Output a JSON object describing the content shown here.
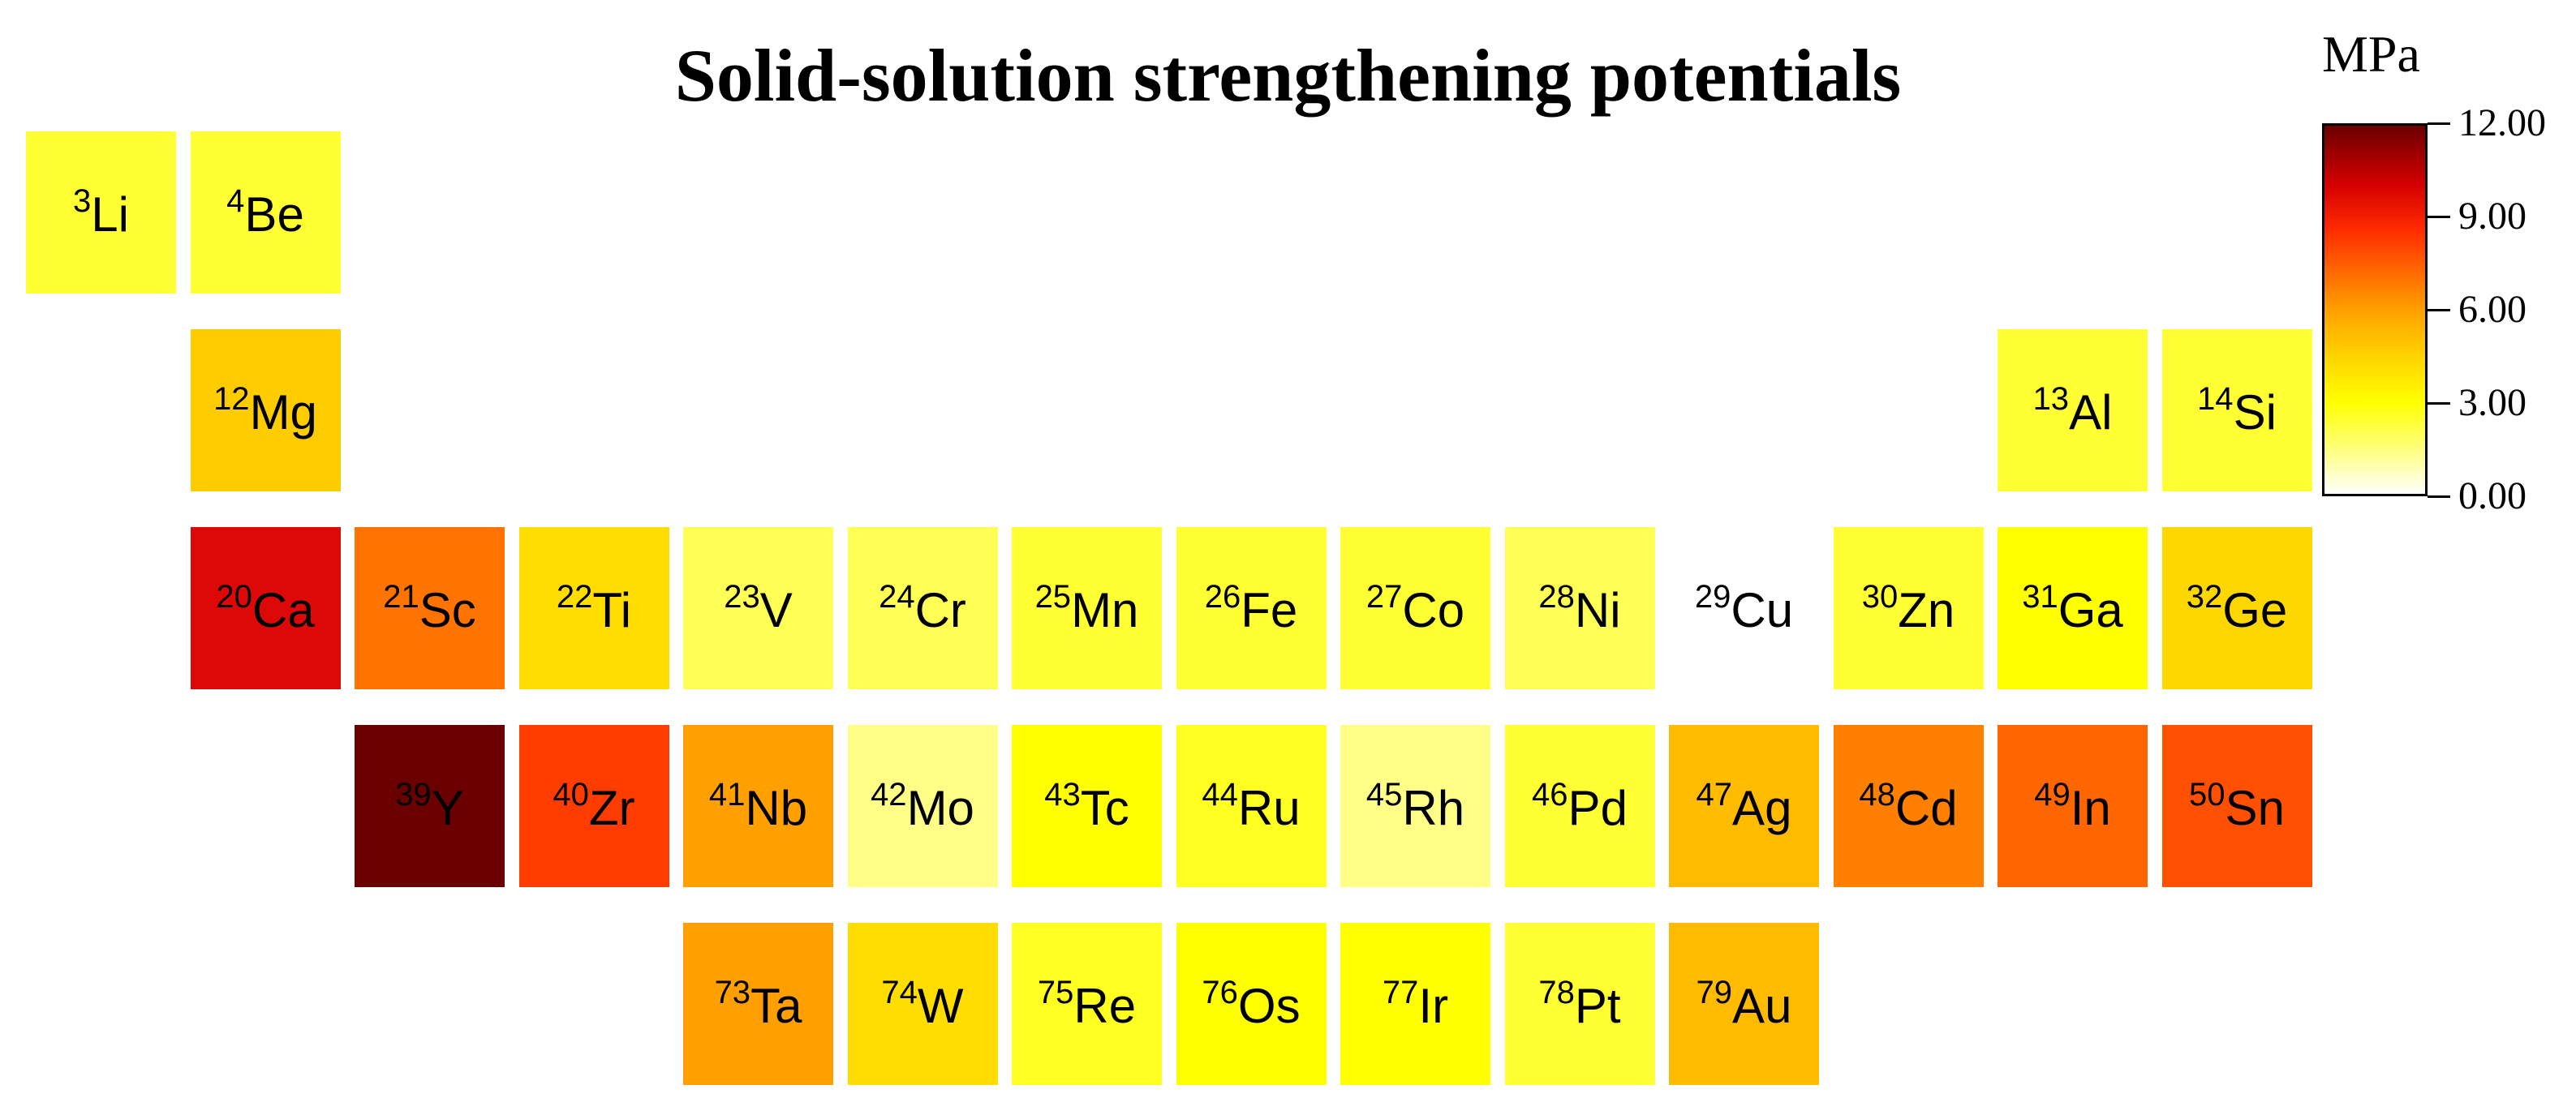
{
  "chart_data": {
    "type": "heatmap",
    "title": "Solid-solution strengthening potentials",
    "colorbar": {
      "unit": "MPa",
      "range": [
        0,
        12
      ],
      "ticks": [
        "0.00",
        "3.00",
        "6.00",
        "9.00",
        "12.00"
      ],
      "colors": [
        "#ffffff",
        "#ffff80",
        "#ffff00",
        "#ffd400",
        "#ffa000",
        "#ff6a00",
        "#ff2a00",
        "#d40000",
        "#a00000",
        "#6a0000"
      ]
    },
    "elements": [
      {
        "z": "3",
        "symbol": "Li",
        "row": 0,
        "col": 0,
        "value": 2.4,
        "color": "#ffff33"
      },
      {
        "z": "4",
        "symbol": "Be",
        "row": 0,
        "col": 1,
        "value": 2.3,
        "color": "#ffff33"
      },
      {
        "z": "12",
        "symbol": "Mg",
        "row": 1,
        "col": 1,
        "value": 4.6,
        "color": "#ffcc00"
      },
      {
        "z": "13",
        "symbol": "Al",
        "row": 1,
        "col": 12,
        "value": 2.5,
        "color": "#ffff33"
      },
      {
        "z": "14",
        "symbol": "Si",
        "row": 1,
        "col": 13,
        "value": 2.4,
        "color": "#ffff33"
      },
      {
        "z": "20",
        "symbol": "Ca",
        "row": 2,
        "col": 1,
        "value": 9.8,
        "color": "#dd0808"
      },
      {
        "z": "21",
        "symbol": "Sc",
        "row": 2,
        "col": 2,
        "value": 7.0,
        "color": "#ff7300"
      },
      {
        "z": "22",
        "symbol": "Ti",
        "row": 2,
        "col": 3,
        "value": 4.1,
        "color": "#ffdd00"
      },
      {
        "z": "23",
        "symbol": "V",
        "row": 2,
        "col": 4,
        "value": 1.8,
        "color": "#ffff55"
      },
      {
        "z": "24",
        "symbol": "Cr",
        "row": 2,
        "col": 5,
        "value": 1.8,
        "color": "#ffff55"
      },
      {
        "z": "25",
        "symbol": "Mn",
        "row": 2,
        "col": 6,
        "value": 2.4,
        "color": "#ffff33"
      },
      {
        "z": "26",
        "symbol": "Fe",
        "row": 2,
        "col": 7,
        "value": 2.4,
        "color": "#ffff33"
      },
      {
        "z": "27",
        "symbol": "Co",
        "row": 2,
        "col": 8,
        "value": 2.4,
        "color": "#ffff33"
      },
      {
        "z": "28",
        "symbol": "Ni",
        "row": 2,
        "col": 9,
        "value": 1.8,
        "color": "#ffff55"
      },
      {
        "z": "29",
        "symbol": "Cu",
        "row": 2,
        "col": 10,
        "value": 0.0,
        "color": "#ffffff"
      },
      {
        "z": "30",
        "symbol": "Zn",
        "row": 2,
        "col": 11,
        "value": 2.4,
        "color": "#ffff33"
      },
      {
        "z": "31",
        "symbol": "Ga",
        "row": 2,
        "col": 12,
        "value": 3.2,
        "color": "#ffff00"
      },
      {
        "z": "32",
        "symbol": "Ge",
        "row": 2,
        "col": 13,
        "value": 4.3,
        "color": "#ffd700"
      },
      {
        "z": "39",
        "symbol": "Y",
        "row": 3,
        "col": 2,
        "value": 12.0,
        "color": "#6b0000"
      },
      {
        "z": "40",
        "symbol": "Zr",
        "row": 3,
        "col": 3,
        "value": 8.6,
        "color": "#ff3c00"
      },
      {
        "z": "41",
        "symbol": "Nb",
        "row": 3,
        "col": 4,
        "value": 5.9,
        "color": "#ffa000"
      },
      {
        "z": "42",
        "symbol": "Mo",
        "row": 3,
        "col": 5,
        "value": 1.2,
        "color": "#ffff88"
      },
      {
        "z": "43",
        "symbol": "Tc",
        "row": 3,
        "col": 6,
        "value": 3.2,
        "color": "#ffff00"
      },
      {
        "z": "44",
        "symbol": "Ru",
        "row": 3,
        "col": 7,
        "value": 2.7,
        "color": "#ffff22"
      },
      {
        "z": "45",
        "symbol": "Rh",
        "row": 3,
        "col": 8,
        "value": 1.1,
        "color": "#ffff88"
      },
      {
        "z": "46",
        "symbol": "Pd",
        "row": 3,
        "col": 9,
        "value": 2.4,
        "color": "#ffff33"
      },
      {
        "z": "47",
        "symbol": "Ag",
        "row": 3,
        "col": 10,
        "value": 5.1,
        "color": "#ffbb00"
      },
      {
        "z": "48",
        "symbol": "Cd",
        "row": 3,
        "col": 11,
        "value": 6.6,
        "color": "#ff8000"
      },
      {
        "z": "49",
        "symbol": "In",
        "row": 3,
        "col": 12,
        "value": 7.5,
        "color": "#ff6600"
      },
      {
        "z": "50",
        "symbol": "Sn",
        "row": 3,
        "col": 13,
        "value": 8.1,
        "color": "#ff4f00"
      },
      {
        "z": "73",
        "symbol": "Ta",
        "row": 4,
        "col": 4,
        "value": 5.9,
        "color": "#ffa000"
      },
      {
        "z": "74",
        "symbol": "W",
        "row": 4,
        "col": 5,
        "value": 4.1,
        "color": "#ffdd00"
      },
      {
        "z": "75",
        "symbol": "Re",
        "row": 4,
        "col": 6,
        "value": 2.7,
        "color": "#ffff22"
      },
      {
        "z": "76",
        "symbol": "Os",
        "row": 4,
        "col": 7,
        "value": 3.3,
        "color": "#ffff00"
      },
      {
        "z": "77",
        "symbol": "Ir",
        "row": 4,
        "col": 8,
        "value": 3.3,
        "color": "#ffff00"
      },
      {
        "z": "78",
        "symbol": "Pt",
        "row": 4,
        "col": 9,
        "value": 2.4,
        "color": "#ffff33"
      },
      {
        "z": "79",
        "symbol": "Au",
        "row": 4,
        "col": 10,
        "value": 5.1,
        "color": "#ffbb00"
      }
    ]
  }
}
